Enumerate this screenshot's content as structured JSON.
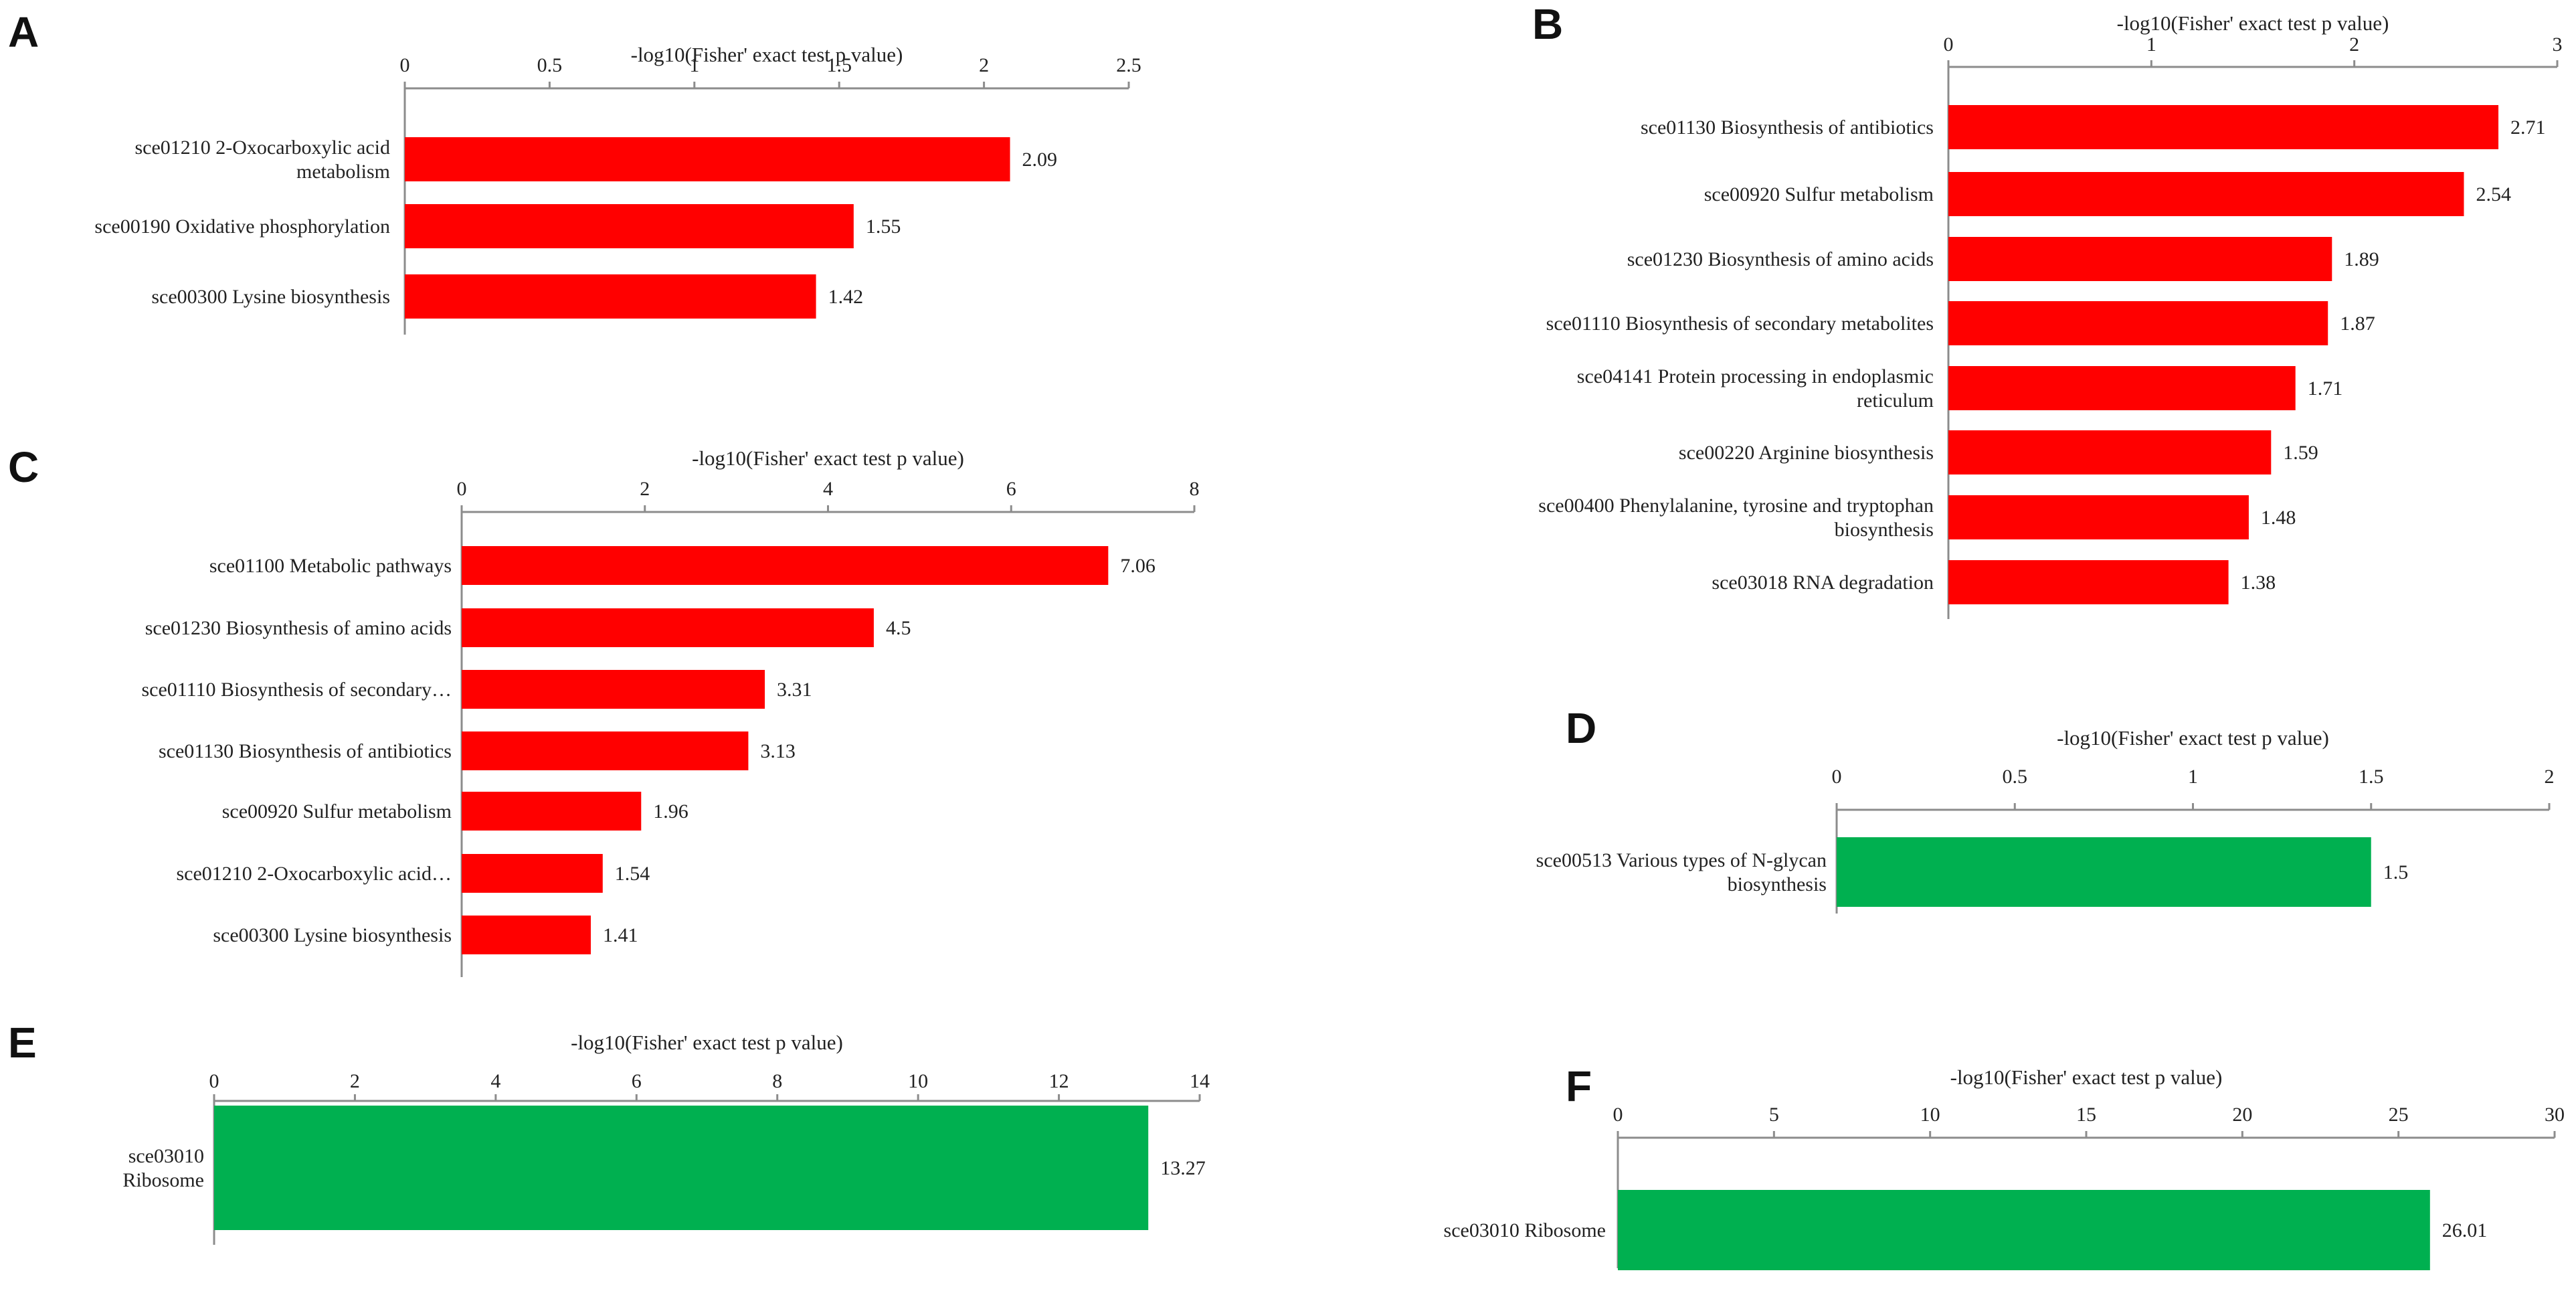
{
  "figure": {
    "panels": [
      "A",
      "B",
      "C",
      "D",
      "E",
      "F"
    ]
  },
  "colors": {
    "enriched_up": "#ff0000",
    "enriched_down": "#00b050",
    "axis": "#8c8c8c",
    "text": "#222222"
  },
  "chart_data": [
    {
      "panel": "A",
      "type": "bar",
      "orientation": "horizontal",
      "title": "",
      "xlabel": "-log10(Fisher' exact test p value)",
      "xlim": [
        0,
        2.5
      ],
      "ticks": [
        "0",
        "0.5",
        "1",
        "1.5",
        "2",
        "2.5"
      ],
      "bar_color": "#ff0000",
      "categories": [
        [
          "sce01210 2-Oxocarboxylic acid",
          "metabolism"
        ],
        [
          "sce00190 Oxidative phosphorylation"
        ],
        [
          "sce00300 Lysine biosynthesis"
        ]
      ],
      "values": [
        2.09,
        1.55,
        1.42
      ],
      "value_labels": [
        "2.09",
        "1.55",
        "1.42"
      ]
    },
    {
      "panel": "B",
      "type": "bar",
      "orientation": "horizontal",
      "title": "",
      "xlabel": "-log10(Fisher' exact test p value)",
      "xlim": [
        0,
        3
      ],
      "ticks": [
        "0",
        "1",
        "2",
        "3"
      ],
      "bar_color": "#ff0000",
      "categories": [
        [
          "sce01130 Biosynthesis of antibiotics"
        ],
        [
          "sce00920 Sulfur metabolism"
        ],
        [
          "sce01230 Biosynthesis of amino acids"
        ],
        [
          "sce01110 Biosynthesis of secondary metabolites"
        ],
        [
          "sce04141 Protein processing in endoplasmic",
          "reticulum"
        ],
        [
          "sce00220 Arginine biosynthesis"
        ],
        [
          "sce00400 Phenylalanine, tyrosine and tryptophan",
          "biosynthesis"
        ],
        [
          "sce03018 RNA degradation"
        ]
      ],
      "values": [
        2.71,
        2.54,
        1.89,
        1.87,
        1.71,
        1.59,
        1.48,
        1.38
      ],
      "value_labels": [
        "2.71",
        "2.54",
        "1.89",
        "1.87",
        "1.71",
        "1.59",
        "1.48",
        "1.38"
      ]
    },
    {
      "panel": "C",
      "type": "bar",
      "orientation": "horizontal",
      "title": "",
      "xlabel": "-log10(Fisher' exact test p value)",
      "xlim": [
        0,
        8
      ],
      "ticks": [
        "0",
        "2",
        "4",
        "6",
        "8"
      ],
      "bar_color": "#ff0000",
      "categories": [
        [
          "sce01100 Metabolic pathways"
        ],
        [
          "sce01230 Biosynthesis of amino acids"
        ],
        [
          "sce01110 Biosynthesis of secondary…"
        ],
        [
          "sce01130 Biosynthesis of antibiotics"
        ],
        [
          "sce00920 Sulfur metabolism"
        ],
        [
          "sce01210 2-Oxocarboxylic acid…"
        ],
        [
          "sce00300 Lysine biosynthesis"
        ]
      ],
      "values": [
        7.06,
        4.5,
        3.31,
        3.13,
        1.96,
        1.54,
        1.41
      ],
      "value_labels": [
        "7.06",
        "4.5",
        "3.31",
        "3.13",
        "1.96",
        "1.54",
        "1.41"
      ]
    },
    {
      "panel": "D",
      "type": "bar",
      "orientation": "horizontal",
      "title": "",
      "xlabel": "-log10(Fisher' exact test p value)",
      "xlim": [
        0,
        2
      ],
      "ticks": [
        "0",
        "0.5",
        "1",
        "1.5",
        "2"
      ],
      "bar_color": "#00b050",
      "categories": [
        [
          "sce00513 Various types of N-glycan",
          "biosynthesis"
        ]
      ],
      "values": [
        1.5
      ],
      "value_labels": [
        "1.5"
      ]
    },
    {
      "panel": "E",
      "type": "bar",
      "orientation": "horizontal",
      "title": "",
      "xlabel": "-log10(Fisher' exact test p value)",
      "xlim": [
        0,
        14
      ],
      "ticks": [
        "0",
        "2",
        "4",
        "6",
        "8",
        "10",
        "12",
        "14"
      ],
      "bar_color": "#00b050",
      "categories": [
        [
          "sce03010",
          "Ribosome"
        ]
      ],
      "values": [
        13.27
      ],
      "value_labels": [
        "13.27"
      ]
    },
    {
      "panel": "F",
      "type": "bar",
      "orientation": "horizontal",
      "title": "",
      "xlabel": "-log10(Fisher' exact test p value)",
      "xlim": [
        0,
        30
      ],
      "ticks": [
        "0",
        "5",
        "10",
        "15",
        "20",
        "25",
        "30"
      ],
      "bar_color": "#00b050",
      "categories": [
        [
          "sce03010 Ribosome"
        ]
      ],
      "values": [
        26.01
      ],
      "value_labels": [
        "26.01"
      ]
    }
  ]
}
